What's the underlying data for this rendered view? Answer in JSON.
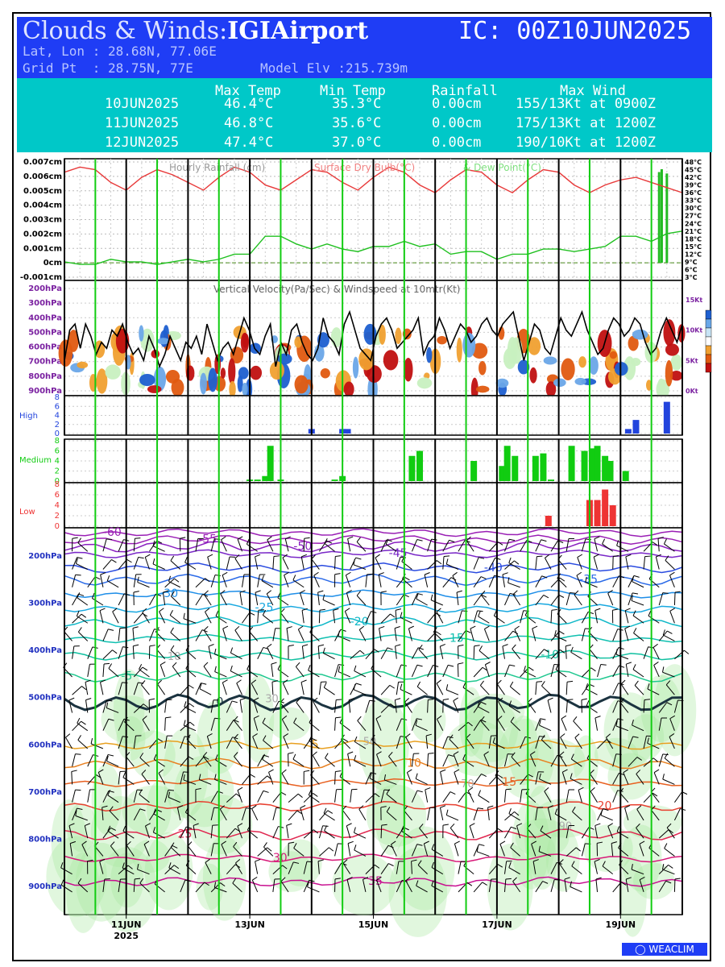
{
  "header": {
    "title_prefix": "Clouds & Winds:",
    "location": "IGIAirport",
    "ic": "IC: 00Z10JUN2025",
    "latlon": "Lat, Lon : 28.68N, 77.06E",
    "gridpt": "Grid Pt  : 28.75N, 77E",
    "model_elv": "Model Elv :215.739m"
  },
  "summary": {
    "headers": [
      "Max Temp",
      "Min Temp",
      "Rainfall",
      "Max Wind"
    ],
    "rows": [
      {
        "date": "10JUN2025",
        "max_temp": "46.4°C",
        "min_temp": "35.3°C",
        "rainfall": "0.00cm",
        "max_wind": "155/13Kt at 0900Z"
      },
      {
        "date": "11JUN2025",
        "max_temp": "46.8°C",
        "min_temp": "35.6°C",
        "rainfall": "0.00cm",
        "max_wind": "175/13Kt at 1200Z"
      },
      {
        "date": "12JUN2025",
        "max_temp": "47.4°C",
        "min_temp": "37.0°C",
        "rainfall": "0.00cm",
        "max_wind": "190/10Kt at 1200Z"
      }
    ]
  },
  "colors": {
    "header_bg": "#1f3df5",
    "summary_bg": "#00c8c8",
    "temp": "#e83a3a",
    "dew": "#20c020",
    "rain": "#22bb22",
    "high": "#2244dd",
    "medium": "#11cc11",
    "low": "#ee3333",
    "day_line": "#11cc11"
  },
  "chart_data": [
    {
      "type": "line",
      "title": "Hourly Rainfall (cm)   Surface Dry Bulb(°C)   & Dew Point(°C)",
      "title_parts": [
        "Hourly Rainfall (cm)",
        "Surface Dry Bulb(°C)",
        "& Dew Point(°C)"
      ],
      "yleft_ticks": [
        "0.007cm",
        "0.006cm",
        "0.005cm",
        "0.004cm",
        "0.003cm",
        "0.002cm",
        "0.001cm",
        "0cm",
        "-0.001cm"
      ],
      "yleft_range": [
        -0.001,
        0.007
      ],
      "yright_ticks": [
        "48°C",
        "45°C",
        "42°C",
        "39°C",
        "36°C",
        "33°C",
        "30°C",
        "27°C",
        "24°C",
        "21°C",
        "18°C",
        "15°C",
        "12°C",
        "9°C",
        "6°C",
        "3°C"
      ],
      "yright_range": [
        3,
        48
      ],
      "x_hours": [
        0,
        6,
        12,
        18,
        24,
        30,
        36,
        42,
        48,
        54,
        60,
        66,
        72,
        78,
        84,
        90,
        96,
        102,
        108,
        114,
        120,
        126,
        132,
        138,
        144,
        150,
        156,
        162,
        168,
        174,
        180,
        186,
        192,
        198,
        204,
        210,
        216,
        222,
        228,
        234,
        240
      ],
      "series": [
        {
          "name": "Surface Dry Bulb(°C)",
          "values": [
            44,
            46,
            45,
            40,
            37,
            42,
            45,
            43,
            40,
            37,
            42,
            46,
            44,
            39,
            37,
            41,
            45,
            44,
            40,
            37,
            42,
            46,
            44,
            39,
            36,
            41,
            45,
            44,
            39,
            36,
            41,
            45,
            44,
            39,
            36,
            39,
            41,
            42,
            40,
            38,
            36
          ]
        },
        {
          "name": "Dew Point(°C)",
          "values": [
            9,
            8,
            8,
            10,
            9,
            9,
            8,
            9,
            10,
            9,
            10,
            12,
            12,
            19,
            19,
            16,
            14,
            16,
            14,
            13,
            15,
            15,
            17,
            15,
            16,
            12,
            13,
            13,
            10,
            12,
            12,
            14,
            14,
            13,
            14,
            15,
            19,
            19,
            17,
            20,
            21
          ]
        },
        {
          "name": "Hourly Rainfall (cm)",
          "x": [
            231,
            232,
            234
          ],
          "values": [
            0.0063,
            0.0065,
            0.0062
          ]
        }
      ]
    },
    {
      "type": "heatmap",
      "title": "Vertical Velocity(Pa/Sec) & Windspeed at 10mtr(Kt)",
      "y_ticks": [
        "200hPa",
        "300hPa",
        "400hPa",
        "500hPa",
        "600hPa",
        "700hPa",
        "800hPa",
        "900hPa"
      ],
      "yright_ticks": [
        "15Kt",
        "10Kt",
        "5Kt",
        "0Kt"
      ],
      "yright_range": [
        0,
        15
      ],
      "colorbar": [
        "#1e5fd0",
        "#6aa7e8",
        "#c8e4f5",
        "#ffffff",
        "#f0a030",
        "#e05a10",
        "#c01010"
      ],
      "windspeed_values": [
        5,
        10,
        11,
        7,
        11,
        9,
        6,
        8,
        7,
        10,
        9,
        11,
        8,
        6,
        7,
        5,
        9,
        7,
        4,
        6,
        9,
        7,
        5,
        8,
        7,
        9,
        6,
        11,
        8,
        5,
        7,
        8,
        6,
        9,
        12,
        10,
        7,
        6,
        9,
        11,
        4,
        8,
        6,
        10,
        11,
        8,
        6,
        5,
        7,
        12,
        9,
        8,
        6,
        11,
        13,
        10,
        7,
        6,
        5,
        9,
        11,
        12,
        10,
        7,
        8,
        9,
        10,
        12,
        6,
        8,
        9,
        12,
        10,
        7,
        9,
        11,
        10,
        8,
        9,
        11,
        12,
        10,
        9,
        11,
        12,
        13,
        9,
        5,
        8,
        11,
        10,
        7,
        6,
        9,
        12,
        10,
        9,
        11,
        13,
        10,
        8,
        6,
        7,
        10,
        12,
        11,
        9,
        10,
        12,
        11,
        8,
        6,
        7,
        10,
        12,
        10,
        8,
        11
      ]
    },
    {
      "type": "bar",
      "title": "High",
      "y_ticks": [
        "8",
        "6",
        "4",
        "2",
        "0"
      ],
      "ylim": [
        0,
        8
      ],
      "bars": [
        {
          "x": 96,
          "value": 1
        },
        {
          "x": 108,
          "value": 1
        },
        {
          "x": 110,
          "value": 1
        },
        {
          "x": 219,
          "value": 1
        },
        {
          "x": 222,
          "value": 3
        },
        {
          "x": 234,
          "value": 7
        }
      ]
    },
    {
      "type": "bar",
      "title": "Medium",
      "y_ticks": [
        "8",
        "6",
        "4",
        "2",
        "0"
      ],
      "ylim": [
        0,
        8
      ],
      "bars": [
        {
          "x": 72,
          "value": 0.3
        },
        {
          "x": 75,
          "value": 0.3
        },
        {
          "x": 78,
          "value": 1
        },
        {
          "x": 80,
          "value": 7
        },
        {
          "x": 84,
          "value": 0.3
        },
        {
          "x": 105,
          "value": 0.3
        },
        {
          "x": 108,
          "value": 1
        },
        {
          "x": 135,
          "value": 5
        },
        {
          "x": 138,
          "value": 6
        },
        {
          "x": 159,
          "value": 4
        },
        {
          "x": 170,
          "value": 3
        },
        {
          "x": 172,
          "value": 7
        },
        {
          "x": 175,
          "value": 5
        },
        {
          "x": 183,
          "value": 5
        },
        {
          "x": 186,
          "value": 5.5
        },
        {
          "x": 189,
          "value": 0.3
        },
        {
          "x": 197,
          "value": 7
        },
        {
          "x": 202,
          "value": 6
        },
        {
          "x": 205,
          "value": 6.5
        },
        {
          "x": 207,
          "value": 7
        },
        {
          "x": 210,
          "value": 5
        },
        {
          "x": 212,
          "value": 4
        },
        {
          "x": 218,
          "value": 2
        }
      ]
    },
    {
      "type": "bar",
      "title": "Low",
      "y_ticks": [
        "8",
        "6",
        "4",
        "2",
        "0"
      ],
      "ylim": [
        0,
        8
      ],
      "bars": [
        {
          "x": 188,
          "value": 2
        },
        {
          "x": 204,
          "value": 5
        },
        {
          "x": 207,
          "value": 5
        },
        {
          "x": 210,
          "value": 7
        },
        {
          "x": 213,
          "value": 4
        }
      ]
    },
    {
      "type": "line",
      "title": "",
      "y_ticks": [
        "200hPa",
        "300hPa",
        "400hPa",
        "500hPa",
        "600hPa",
        "700hPa",
        "800hPa",
        "900hPa"
      ],
      "x_ticks": [
        "11JUN",
        "13JUN",
        "15JUN",
        "17JUN",
        "19JUN"
      ],
      "x_ticks_year": "2025",
      "x_tick_hours": [
        24,
        72,
        120,
        168,
        216
      ],
      "isotherms": [
        {
          "label": "-60",
          "level_hpa": 150,
          "color": "#9a1fb5"
        },
        {
          "label": "-55",
          "level_hpa": 165,
          "color": "#9a1fb5"
        },
        {
          "label": "-50",
          "level_hpa": 180,
          "color": "#8a20c0"
        },
        {
          "label": "-45",
          "level_hpa": 195,
          "color": "#7a28c8"
        },
        {
          "label": "-40",
          "level_hpa": 225,
          "color": "#2a4be0"
        },
        {
          "label": "-35",
          "level_hpa": 250,
          "color": "#2a6ae8"
        },
        {
          "label": "-30",
          "level_hpa": 280,
          "color": "#1e8ee8"
        },
        {
          "label": "-25",
          "level_hpa": 310,
          "color": "#18a8e0"
        },
        {
          "label": "-20",
          "level_hpa": 340,
          "color": "#10b8c8"
        },
        {
          "label": "-15",
          "level_hpa": 375,
          "color": "#10c0b0"
        },
        {
          "label": "-10",
          "level_hpa": 410,
          "color": "#10c0a0"
        },
        {
          "label": "-5",
          "level_hpa": 455,
          "color": "#20c890"
        },
        {
          "label": "0",
          "level_hpa": 510,
          "color": "#1b3340"
        },
        {
          "label": "5",
          "level_hpa": 600,
          "color": "#e8a020"
        },
        {
          "label": "10",
          "level_hpa": 640,
          "color": "#e88020"
        },
        {
          "label": "15",
          "level_hpa": 680,
          "color": "#e86020"
        },
        {
          "label": "20",
          "level_hpa": 730,
          "color": "#e84030"
        },
        {
          "label": "25",
          "level_hpa": 790,
          "color": "#e02850"
        },
        {
          "label": "30",
          "level_hpa": 840,
          "color": "#d81878"
        },
        {
          "label": "35",
          "level_hpa": 890,
          "color": "#c81090"
        }
      ],
      "rh_labels": [
        "10",
        "30",
        "50",
        "70",
        "90"
      ]
    }
  ],
  "logo": "WEACLIM"
}
